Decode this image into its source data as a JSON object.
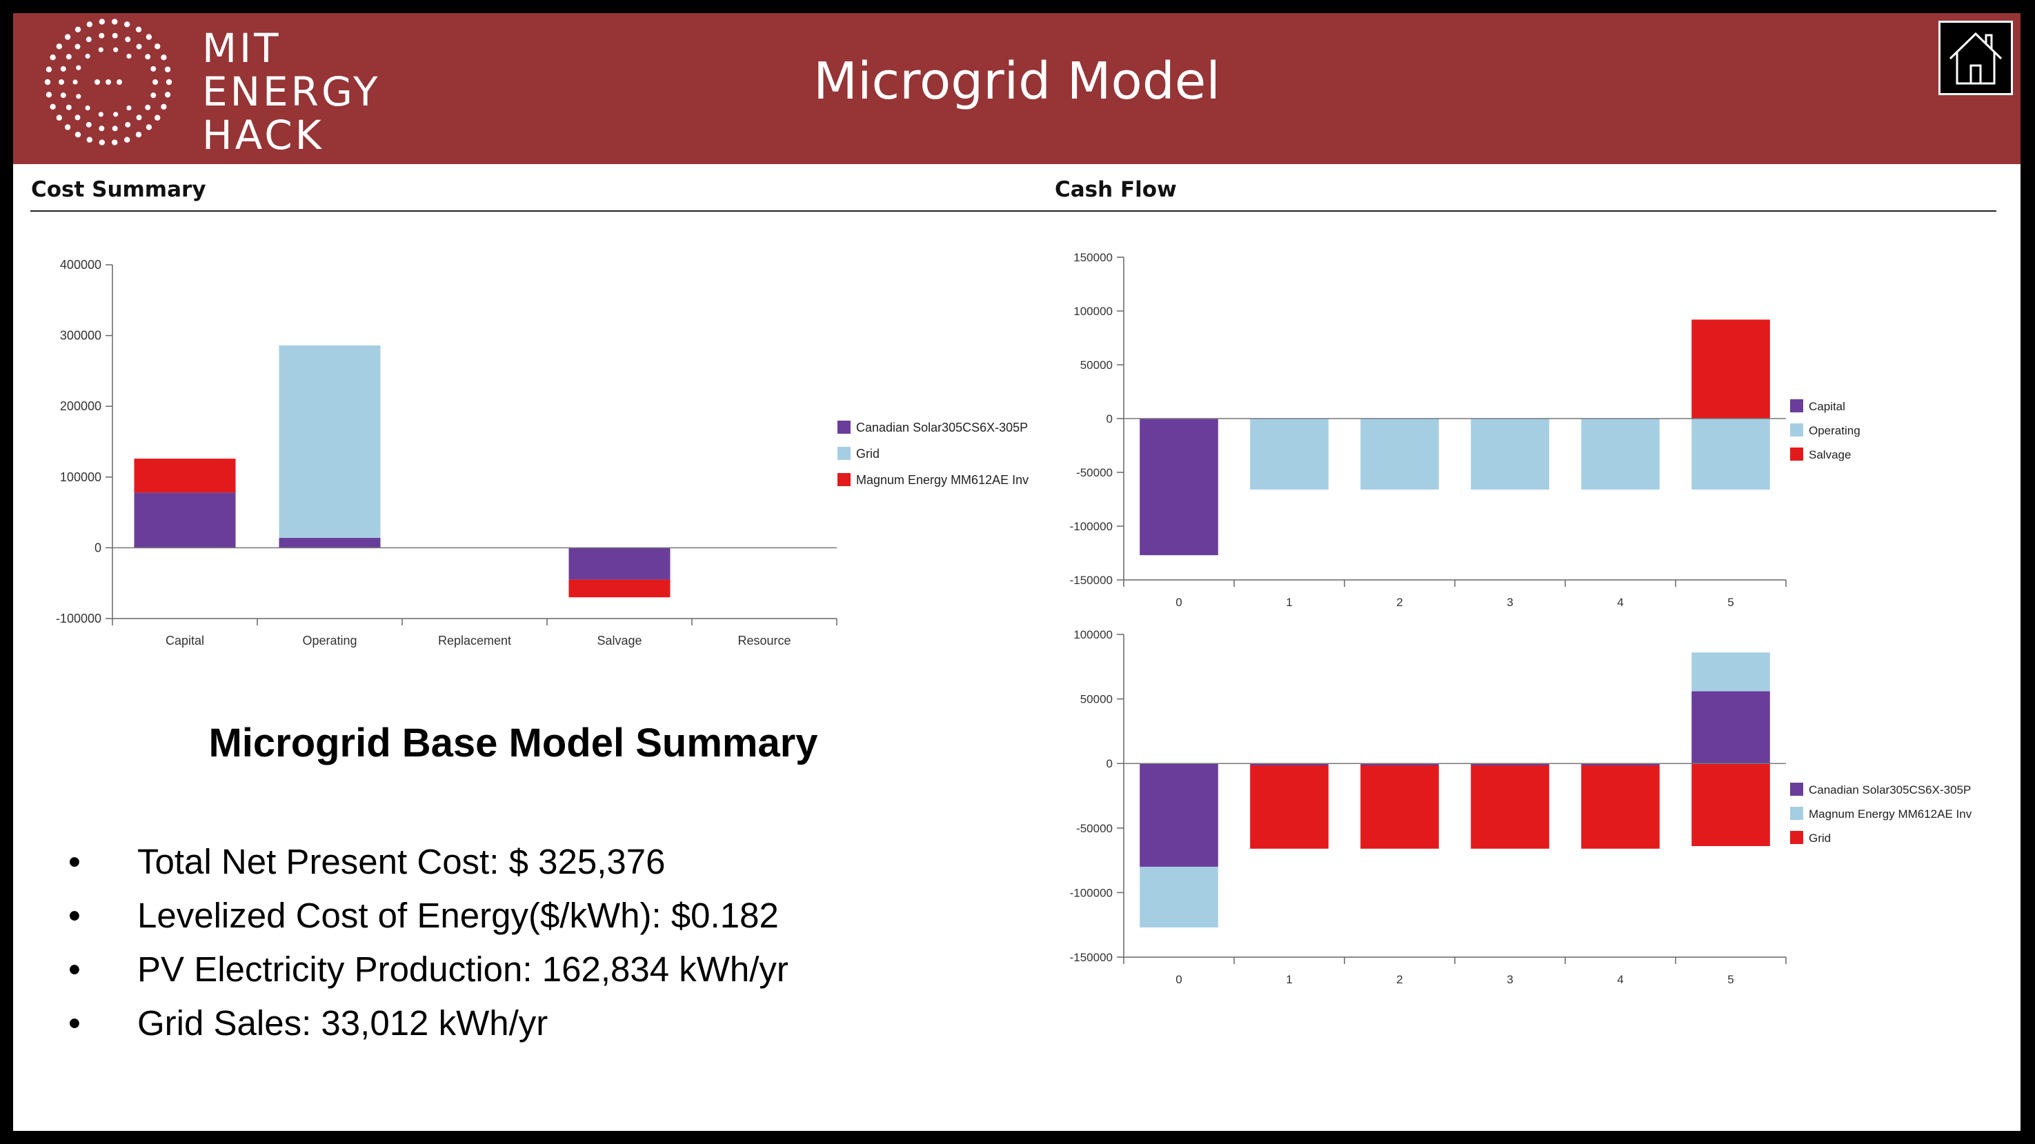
{
  "header": {
    "logo_lines": [
      "MIT",
      "ENERGY",
      "HACK"
    ],
    "title": "Microgrid Model",
    "home_icon": "home-icon"
  },
  "cost_summary": {
    "title": "Cost Summary"
  },
  "cash_flow": {
    "title": "Cash Flow"
  },
  "summary": {
    "title": "Microgrid Base Model Summary",
    "bullet": "•",
    "items": [
      "Total Net Present Cost:  $ 325,376",
      "Levelized Cost of Energy($/kWh):  $0.182",
      "PV Electricity Production: 162,834 kWh/yr",
      "Grid Sales: 33,012 kWh/yr"
    ]
  },
  "colors": {
    "header_bg": "#963436",
    "purple": "#6a3d9a",
    "light_blue": "#a6cee3",
    "red": "#e31a1c"
  },
  "chart_data": [
    {
      "type": "bar",
      "stacked": true,
      "categories": [
        "Capital",
        "Operating",
        "Replacement",
        "Salvage",
        "Resource"
      ],
      "ylim": [
        -100000,
        400000
      ],
      "yticks": [
        "400000",
        "300000",
        "200000",
        "100000",
        "0",
        "-100000"
      ],
      "legend_position": "right",
      "series": [
        {
          "name": "Canadian Solar305CS6X-305P",
          "color": "#6a3d9a",
          "values": [
            78000,
            14000,
            0,
            -45000,
            0
          ]
        },
        {
          "name": "Grid",
          "color": "#a6cee3",
          "values": [
            0,
            272000,
            0,
            0,
            0
          ]
        },
        {
          "name": "Magnum Energy MM612AE Inv",
          "color": "#e31a1c",
          "values": [
            48000,
            0,
            0,
            -25000,
            0
          ]
        }
      ]
    },
    {
      "type": "bar",
      "stacked": true,
      "categories": [
        "0",
        "1",
        "2",
        "3",
        "4",
        "5"
      ],
      "ylim": [
        -150000,
        150000
      ],
      "yticks": [
        "150000",
        "100000",
        "50000",
        "0",
        "-50000",
        "-100000",
        "-150000"
      ],
      "legend_position": "right",
      "series": [
        {
          "name": "Capital",
          "color": "#6a3d9a",
          "values": [
            -127000,
            0,
            0,
            0,
            0,
            0
          ]
        },
        {
          "name": "Operating",
          "color": "#a6cee3",
          "values": [
            0,
            -66000,
            -66000,
            -66000,
            -66000,
            -66000
          ]
        },
        {
          "name": "Salvage",
          "color": "#e31a1c",
          "values": [
            0,
            0,
            0,
            0,
            0,
            92000
          ]
        }
      ]
    },
    {
      "type": "bar",
      "stacked": true,
      "categories": [
        "0",
        "1",
        "2",
        "3",
        "4",
        "5"
      ],
      "ylim": [
        -150000,
        100000
      ],
      "yticks": [
        "100000",
        "50000",
        "0",
        "-50000",
        "-100000",
        "-150000"
      ],
      "legend_position": "right",
      "series": [
        {
          "name": "Canadian Solar305CS6X-305P",
          "color": "#6a3d9a",
          "values": [
            -80000,
            -1500,
            -1500,
            -1500,
            -1500,
            56000
          ]
        },
        {
          "name": "Magnum Energy MM612AE Inv",
          "color": "#a6cee3",
          "values": [
            -47000,
            0,
            0,
            0,
            0,
            30000
          ]
        },
        {
          "name": "Grid",
          "color": "#e31a1c",
          "values": [
            0,
            -64500,
            -64500,
            -64500,
            -64500,
            -64000
          ]
        }
      ]
    }
  ]
}
